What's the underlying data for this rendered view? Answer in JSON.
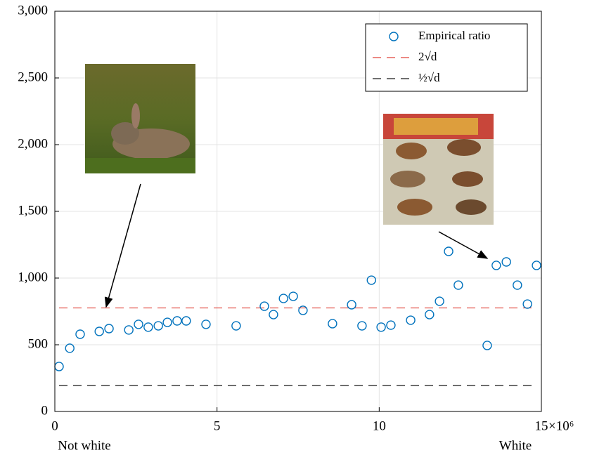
{
  "chart_data": {
    "type": "scatter",
    "x": [
      0.13,
      0.46,
      0.78,
      1.37,
      1.67,
      2.28,
      2.58,
      2.88,
      3.19,
      3.47,
      3.77,
      4.05,
      4.66,
      5.59,
      6.46,
      6.74,
      7.05,
      7.35,
      7.65,
      8.56,
      9.15,
      9.47,
      9.76,
      10.06,
      10.36,
      10.97,
      11.55,
      11.86,
      12.14,
      12.44,
      13.33,
      13.61,
      13.92,
      14.26,
      14.57,
      14.85
    ],
    "series": [
      {
        "name": "Empirical ratio",
        "color": "#0072bd",
        "values": [
          337,
          474,
          579,
          600,
          621,
          611,
          653,
          632,
          642,
          668,
          679,
          679,
          653,
          642,
          789,
          726,
          847,
          863,
          758,
          658,
          800,
          642,
          984,
          632,
          647,
          684,
          726,
          826,
          1200,
          947,
          495,
          1095,
          1121,
          947,
          805,
          1095
        ]
      }
    ],
    "reference_lines": [
      {
        "name": "2√d",
        "color": "#e0443c",
        "value": 776
      },
      {
        "name": "½√d",
        "color": "#1a1a1a",
        "value": 194
      }
    ],
    "xlim": [
      0,
      15
    ],
    "xticks": [
      0,
      5,
      10,
      15
    ],
    "x_multiplier": "×10⁶",
    "ylim": [
      0,
      3000
    ],
    "yticks": [
      0,
      500,
      {
        "value": 1000,
        "label": "1,000"
      },
      {
        "value": 1500,
        "label": "1,500"
      },
      {
        "value": 2000,
        "label": "2,000"
      },
      {
        "value": 2500,
        "label": "2,500"
      },
      {
        "value": 3000,
        "label": "3,000"
      }
    ],
    "x_start_label": "Not white",
    "x_end_label": "White",
    "grid": true,
    "legend": "upper right"
  }
}
